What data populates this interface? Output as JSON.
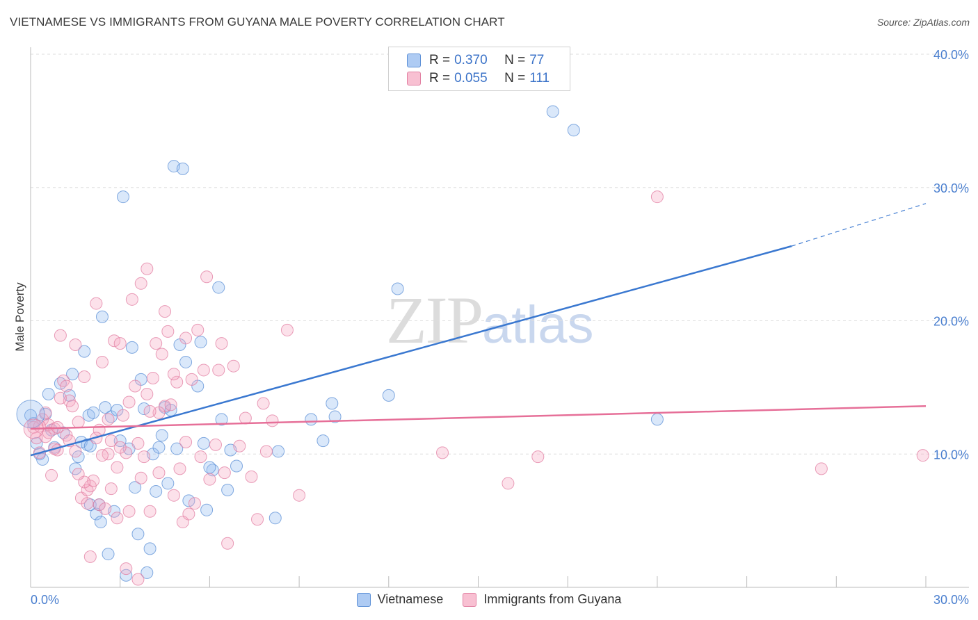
{
  "title": "VIETNAMESE VS IMMIGRANTS FROM GUYANA MALE POVERTY CORRELATION CHART",
  "source": "Source: ZipAtlas.com",
  "watermark": {
    "zip": "ZIP",
    "atlas": "atlas"
  },
  "legend": {
    "r_label": "R =",
    "n_label": "N =",
    "series": [
      {
        "name": "Vietnamese",
        "r": "0.370",
        "n": "77",
        "fill": "#aecbf3",
        "stroke": "#5b8fd6"
      },
      {
        "name": "Immigrants from Guyana",
        "r": "0.055",
        "n": "111",
        "fill": "#f8c0d2",
        "stroke": "#e17ea1"
      }
    ]
  },
  "chart_data": {
    "type": "scatter",
    "title": "VIETNAMESE VS IMMIGRANTS FROM GUYANA MALE POVERTY CORRELATION CHART",
    "xlabel": "",
    "ylabel": "Male Poverty",
    "xlim": [
      0,
      30
    ],
    "ylim": [
      0,
      40
    ],
    "x_ticks": [
      "0.0%",
      "30.0%"
    ],
    "y_ticks": [
      {
        "value": 10,
        "label": "10.0%"
      },
      {
        "value": 20,
        "label": "20.0%"
      },
      {
        "value": 30,
        "label": "30.0%"
      },
      {
        "value": 40,
        "label": "40.0%"
      }
    ],
    "series": [
      {
        "name": "Vietnamese",
        "color": "#3a78d0",
        "fill": "rgba(150,190,240,0.35)",
        "trend": {
          "x0": 0,
          "y0": 9.9,
          "x1": 25.5,
          "y1": 25.6,
          "dash_to_x": 30,
          "dash_to_y": 28.8
        },
        "points": [
          [
            0,
            12.9
          ],
          [
            0.2,
            10.8
          ],
          [
            0.3,
            10.0
          ],
          [
            0.5,
            13.0
          ],
          [
            0.6,
            14.5
          ],
          [
            0.7,
            11.8
          ],
          [
            0.8,
            10.5
          ],
          [
            1.0,
            15.3
          ],
          [
            1.1,
            11.6
          ],
          [
            1.3,
            14.4
          ],
          [
            1.4,
            16.0
          ],
          [
            1.5,
            8.9
          ],
          [
            1.6,
            9.8
          ],
          [
            1.7,
            10.9
          ],
          [
            1.8,
            17.7
          ],
          [
            1.9,
            10.7
          ],
          [
            1.95,
            12.9
          ],
          [
            2.0,
            6.2
          ],
          [
            2.1,
            13.1
          ],
          [
            2.2,
            5.5
          ],
          [
            2.3,
            6.2
          ],
          [
            2.35,
            4.9
          ],
          [
            2.4,
            20.3
          ],
          [
            2.5,
            13.5
          ],
          [
            2.6,
            2.5
          ],
          [
            2.7,
            12.8
          ],
          [
            2.8,
            5.7
          ],
          [
            2.9,
            13.3
          ],
          [
            3.0,
            11.0
          ],
          [
            3.1,
            29.3
          ],
          [
            3.2,
            0.9
          ],
          [
            3.3,
            10.4
          ],
          [
            3.4,
            18.0
          ],
          [
            3.5,
            7.5
          ],
          [
            3.6,
            4.0
          ],
          [
            3.7,
            15.6
          ],
          [
            3.8,
            13.4
          ],
          [
            3.9,
            1.1
          ],
          [
            4.0,
            2.9
          ],
          [
            4.1,
            10.0
          ],
          [
            4.2,
            7.2
          ],
          [
            4.3,
            10.5
          ],
          [
            4.4,
            11.4
          ],
          [
            4.5,
            13.5
          ],
          [
            4.6,
            7.8
          ],
          [
            4.7,
            13.3
          ],
          [
            4.8,
            31.6
          ],
          [
            4.9,
            10.4
          ],
          [
            5.0,
            18.2
          ],
          [
            5.1,
            31.4
          ],
          [
            5.2,
            16.9
          ],
          [
            5.3,
            6.5
          ],
          [
            5.6,
            15.1
          ],
          [
            5.7,
            18.4
          ],
          [
            5.8,
            10.8
          ],
          [
            5.9,
            5.8
          ],
          [
            6.1,
            8.8
          ],
          [
            6.3,
            22.5
          ],
          [
            6.4,
            12.6
          ],
          [
            6.6,
            7.3
          ],
          [
            6.7,
            10.3
          ],
          [
            6.9,
            9.1
          ],
          [
            8.2,
            5.2
          ],
          [
            8.3,
            10.2
          ],
          [
            9.4,
            12.6
          ],
          [
            9.8,
            11.0
          ],
          [
            10.1,
            13.8
          ],
          [
            10.2,
            12.8
          ],
          [
            12.0,
            14.4
          ],
          [
            12.3,
            22.4
          ],
          [
            17.5,
            35.7
          ],
          [
            18.2,
            34.3
          ],
          [
            21.0,
            12.6
          ],
          [
            0.1,
            12.3
          ],
          [
            0.4,
            9.6
          ],
          [
            6.0,
            9.0
          ],
          [
            2.0,
            10.6
          ]
        ]
      },
      {
        "name": "Immigrants from Guyana",
        "color": "#e66f98",
        "fill": "rgba(246,170,196,0.35)",
        "trend": {
          "x0": 0,
          "y0": 11.9,
          "x1": 30,
          "y1": 13.6
        },
        "points": [
          [
            0.1,
            12.0
          ],
          [
            0.2,
            11.2
          ],
          [
            0.3,
            10.1
          ],
          [
            0.4,
            12.6
          ],
          [
            0.5,
            11.3
          ],
          [
            0.6,
            12.2
          ],
          [
            0.7,
            8.4
          ],
          [
            0.8,
            11.9
          ],
          [
            0.9,
            10.3
          ],
          [
            1.0,
            18.9
          ],
          [
            1.1,
            15.5
          ],
          [
            1.2,
            11.4
          ],
          [
            1.3,
            14.0
          ],
          [
            1.4,
            13.6
          ],
          [
            1.5,
            18.2
          ],
          [
            1.6,
            12.4
          ],
          [
            1.7,
            6.7
          ],
          [
            1.8,
            15.8
          ],
          [
            1.9,
            7.3
          ],
          [
            2.0,
            7.6
          ],
          [
            2.1,
            8.0
          ],
          [
            2.2,
            21.3
          ],
          [
            2.3,
            6.2
          ],
          [
            2.4,
            16.9
          ],
          [
            2.5,
            5.9
          ],
          [
            2.6,
            12.6
          ],
          [
            2.7,
            7.4
          ],
          [
            2.8,
            18.5
          ],
          [
            2.9,
            9.0
          ],
          [
            3.0,
            18.3
          ],
          [
            3.1,
            12.9
          ],
          [
            3.2,
            10.1
          ],
          [
            3.3,
            5.7
          ],
          [
            3.4,
            21.6
          ],
          [
            3.5,
            15.1
          ],
          [
            3.6,
            10.8
          ],
          [
            3.7,
            8.2
          ],
          [
            3.8,
            9.8
          ],
          [
            3.9,
            14.5
          ],
          [
            4.0,
            5.7
          ],
          [
            4.1,
            15.7
          ],
          [
            4.2,
            18.3
          ],
          [
            4.3,
            8.6
          ],
          [
            4.4,
            17.5
          ],
          [
            4.5,
            13.6
          ],
          [
            4.6,
            19.2
          ],
          [
            4.7,
            13.7
          ],
          [
            4.8,
            6.9
          ],
          [
            4.9,
            15.4
          ],
          [
            5.0,
            8.9
          ],
          [
            5.1,
            4.9
          ],
          [
            5.2,
            18.7
          ],
          [
            5.3,
            5.5
          ],
          [
            5.4,
            15.6
          ],
          [
            5.5,
            6.3
          ],
          [
            5.6,
            19.3
          ],
          [
            5.7,
            9.8
          ],
          [
            5.8,
            16.3
          ],
          [
            5.9,
            23.3
          ],
          [
            6.0,
            8.1
          ],
          [
            6.2,
            10.7
          ],
          [
            6.3,
            16.3
          ],
          [
            6.4,
            18.3
          ],
          [
            6.5,
            8.6
          ],
          [
            6.6,
            3.3
          ],
          [
            6.8,
            16.6
          ],
          [
            7.0,
            10.6
          ],
          [
            7.2,
            12.7
          ],
          [
            7.4,
            8.3
          ],
          [
            7.6,
            5.1
          ],
          [
            7.8,
            13.8
          ],
          [
            7.9,
            10.2
          ],
          [
            8.1,
            12.5
          ],
          [
            8.6,
            19.3
          ],
          [
            9.0,
            6.9
          ],
          [
            13.8,
            10.1
          ],
          [
            16.0,
            7.8
          ],
          [
            17.0,
            9.8
          ],
          [
            21.0,
            29.3
          ],
          [
            26.5,
            8.9
          ],
          [
            29.9,
            9.9
          ],
          [
            0.3,
            12.1
          ],
          [
            0.6,
            11.6
          ],
          [
            0.9,
            12.0
          ],
          [
            1.2,
            15.1
          ],
          [
            1.5,
            10.2
          ],
          [
            1.8,
            7.9
          ],
          [
            2.0,
            2.3
          ],
          [
            2.3,
            11.8
          ],
          [
            2.6,
            10.0
          ],
          [
            2.9,
            5.2
          ],
          [
            3.2,
            1.4
          ],
          [
            3.6,
            0.6
          ],
          [
            3.9,
            23.9
          ],
          [
            4.3,
            13.1
          ],
          [
            4.5,
            20.7
          ],
          [
            4.8,
            16.0
          ],
          [
            5.2,
            10.9
          ],
          [
            0.5,
            13.1
          ],
          [
            0.8,
            10.4
          ],
          [
            1.0,
            14.2
          ],
          [
            1.3,
            11.0
          ],
          [
            1.6,
            8.5
          ],
          [
            1.9,
            6.3
          ],
          [
            2.2,
            11.2
          ],
          [
            2.4,
            9.9
          ],
          [
            2.7,
            11.0
          ],
          [
            3.0,
            10.5
          ],
          [
            3.3,
            13.9
          ],
          [
            3.7,
            22.8
          ],
          [
            4.0,
            13.2
          ]
        ]
      }
    ]
  }
}
